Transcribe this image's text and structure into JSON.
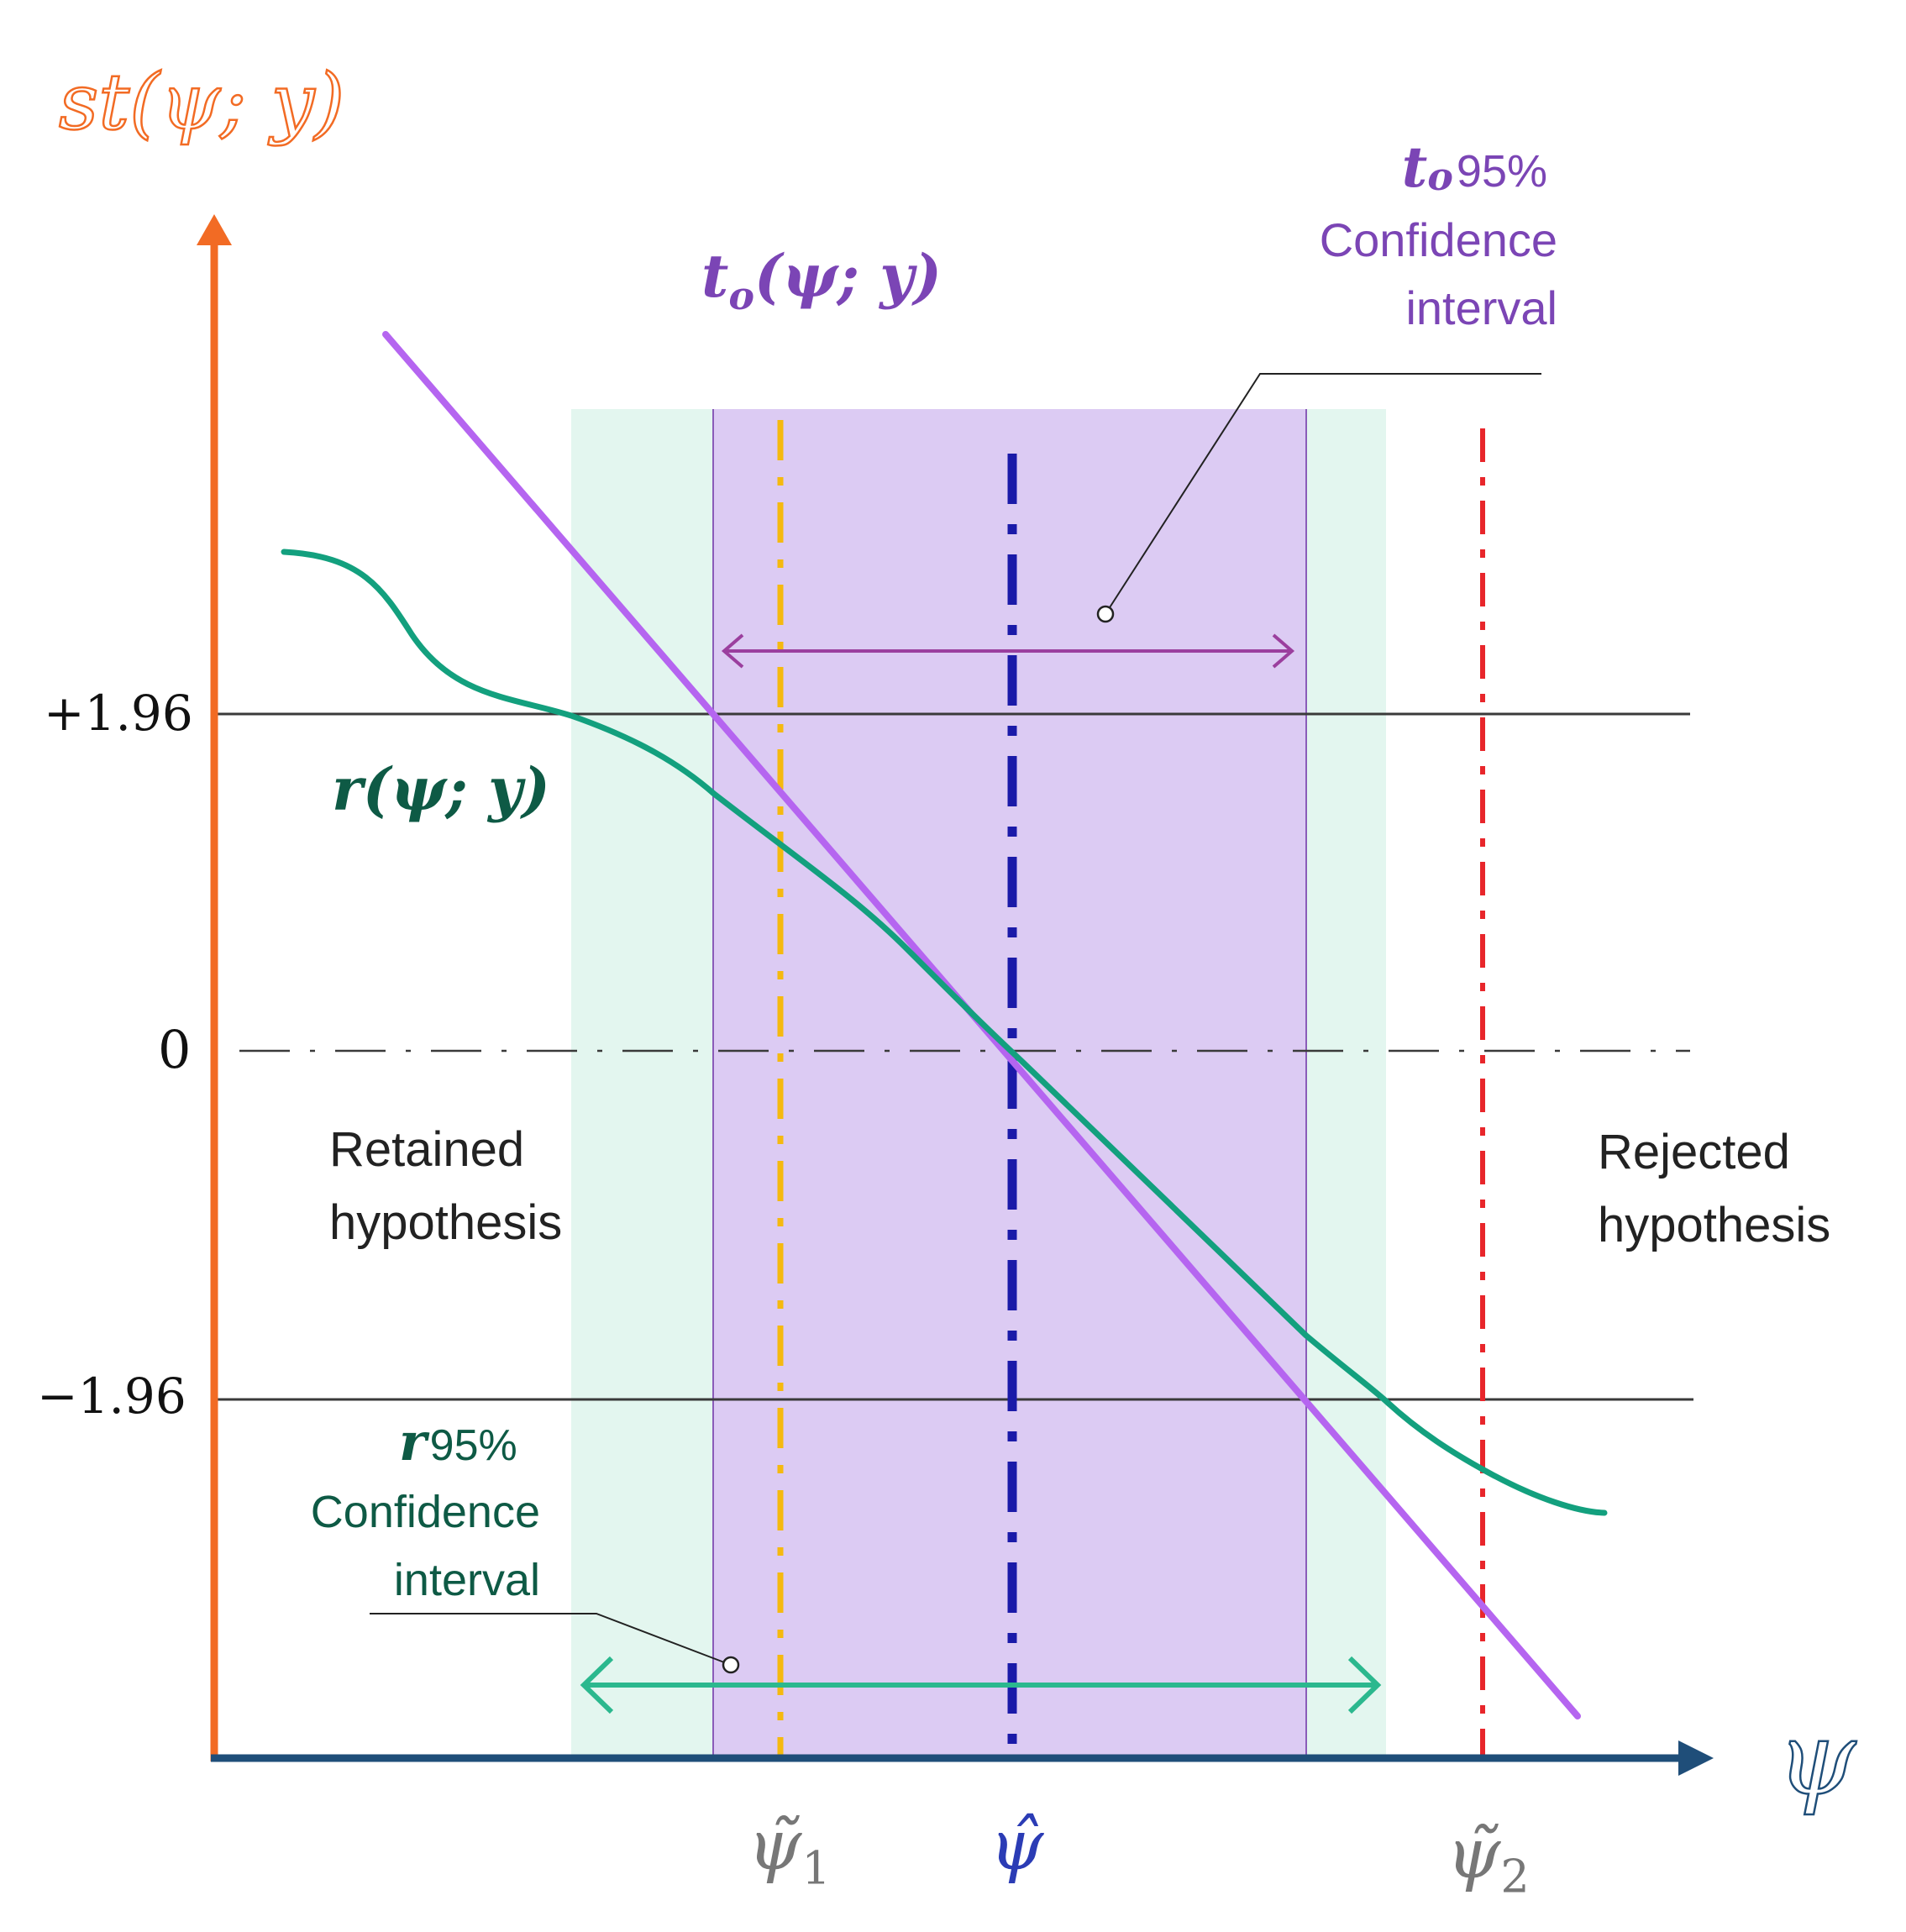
{
  "axes": {
    "y_axis_label": "st(ψ; y)",
    "x_axis_label": "ψ",
    "y_ticks": [
      "+1.96",
      "0",
      "−1.96"
    ]
  },
  "curves": {
    "to_label_main": "t",
    "to_label_sub": "o",
    "to_label_args": "(ψ; y)",
    "r_label_main": "r",
    "r_label_args": "(ψ; y)"
  },
  "intervals": {
    "to_ci_symbol": "t",
    "to_ci_symbol_sub": "o",
    "to_ci_percent": "95%",
    "to_ci_text": "Confidence\ninterval",
    "r_ci_symbol": "r",
    "r_ci_percent": "95%",
    "r_ci_text": "Confidence\ninterval"
  },
  "regions": {
    "retained": "Retained\nhypothesis",
    "rejected": "Rejected\nhypothesis"
  },
  "x_markers": {
    "psi_tilde_1": "ψ̃",
    "psi_tilde_1_sub": "1",
    "psi_hat": "ψ̂",
    "psi_tilde_2": "ψ̃",
    "psi_tilde_2_sub": "2"
  },
  "colors": {
    "y_axis": "#f26b24",
    "x_axis": "#1f4e79",
    "to_line": "#b565f0",
    "r_curve": "#13a07e",
    "to_band": "#dccbf3",
    "r_band": "#e3f6ef",
    "psi_hat_line": "#1a1aa8",
    "psi1_line": "#f5b90f",
    "psi2_line": "#e8262b",
    "to_arrow": "#9b3f9e",
    "r_arrow": "#2bb88e",
    "dark_green_text": "#0e5a45",
    "purple_text": "#7b45b5"
  }
}
